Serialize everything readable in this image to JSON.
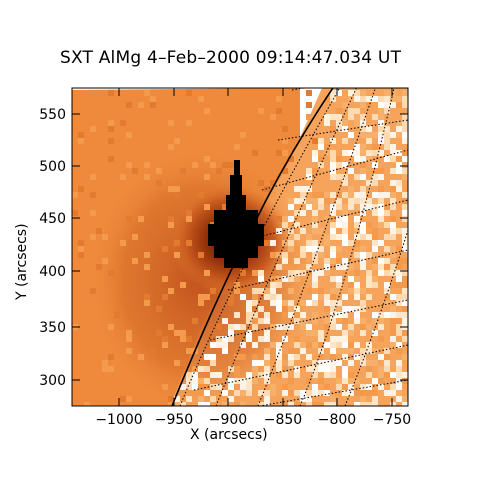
{
  "title": "SXT AlMg  4–Feb–2000 09:14:47.034 UT",
  "xlabel": "X (arcsecs)",
  "ylabel": "Y (arcsecs)",
  "axes": {
    "x_ticks": [
      "−1000",
      "−950",
      "−900",
      "−850",
      "−800",
      "−750"
    ],
    "y_ticks": [
      "550",
      "500",
      "450",
      "400",
      "350",
      "300"
    ]
  },
  "image": {
    "description_colors": {
      "background": "#f08a3a",
      "dark_core": "#000000",
      "halo": "#a0320a",
      "limb_pixels": "#ffe6c8"
    },
    "overlays": [
      "solar-limb-line",
      "heliographic-grid"
    ]
  }
}
